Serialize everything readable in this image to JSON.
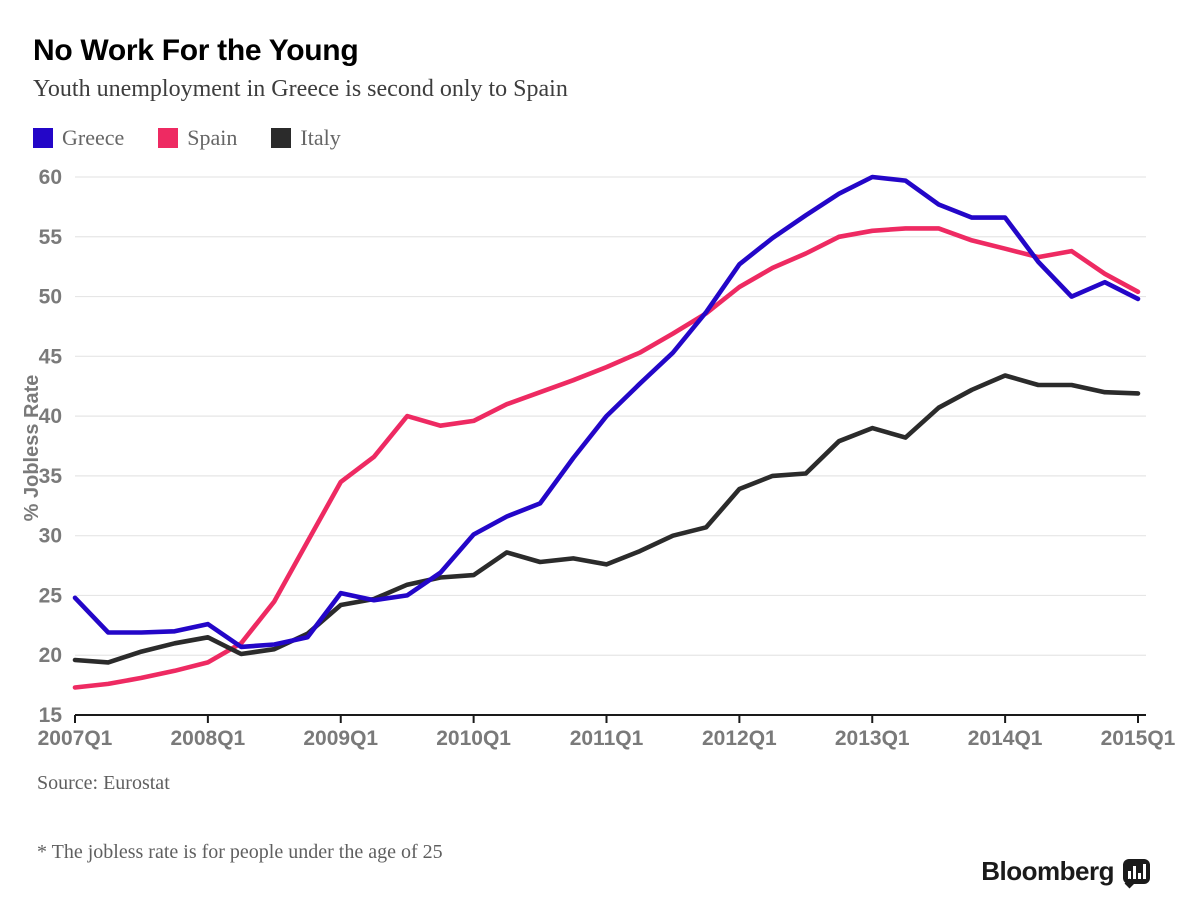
{
  "header": {
    "title": "No Work For the Young",
    "subtitle": "Youth unemployment in Greece is second only to Spain"
  },
  "footer": {
    "source": "Source: Eurostat",
    "footnote": "* The jobless rate is for people under the age of 25",
    "brand": "Bloomberg"
  },
  "colors": {
    "background": "#ffffff",
    "grid": "#e6e6e6",
    "axis": "#1a1a1a",
    "tick_label": "#7a7a7a",
    "axis_title": "#7a7a7a"
  },
  "chart_data": {
    "type": "line",
    "title": "No Work For the Young",
    "subtitle": "Youth unemployment in Greece is second only to Spain",
    "xlabel": "",
    "ylabel": "% Jobless Rate",
    "ylim": [
      15,
      60
    ],
    "y_ticks": [
      15,
      20,
      25,
      30,
      35,
      40,
      45,
      50,
      55,
      60
    ],
    "grid": "horizontal",
    "legend_position": "top-left",
    "x": [
      "2007Q1",
      "2007Q2",
      "2007Q3",
      "2007Q4",
      "2008Q1",
      "2008Q2",
      "2008Q3",
      "2008Q4",
      "2009Q1",
      "2009Q2",
      "2009Q3",
      "2009Q4",
      "2010Q1",
      "2010Q2",
      "2010Q3",
      "2010Q4",
      "2011Q1",
      "2011Q2",
      "2011Q3",
      "2011Q4",
      "2012Q1",
      "2012Q2",
      "2012Q3",
      "2012Q4",
      "2013Q1",
      "2013Q2",
      "2013Q3",
      "2013Q4",
      "2014Q1",
      "2014Q2",
      "2014Q3",
      "2014Q4",
      "2015Q1"
    ],
    "x_tick_labels": [
      "2007Q1",
      "2008Q1",
      "2009Q1",
      "2010Q1",
      "2011Q1",
      "2012Q1",
      "2013Q1",
      "2014Q1",
      "2015Q1"
    ],
    "x_tick_every": 4,
    "series": [
      {
        "name": "Greece",
        "color": "#2306c8",
        "values": [
          24.8,
          21.9,
          21.9,
          22.0,
          22.6,
          20.7,
          20.9,
          21.5,
          25.2,
          24.6,
          25.0,
          26.9,
          30.1,
          31.6,
          32.7,
          36.5,
          40.0,
          42.7,
          45.3,
          48.7,
          52.7,
          54.9,
          56.8,
          58.6,
          60.0,
          59.7,
          57.7,
          56.6,
          56.6,
          52.9,
          50.0,
          51.2,
          49.8
        ]
      },
      {
        "name": "Spain",
        "color": "#ee2a62",
        "values": [
          17.3,
          17.6,
          18.1,
          18.7,
          19.4,
          21.0,
          24.5,
          29.5,
          34.5,
          36.6,
          40.0,
          39.2,
          39.6,
          41.0,
          42.0,
          43.0,
          44.1,
          45.3,
          46.9,
          48.6,
          50.8,
          52.4,
          53.6,
          55.0,
          55.5,
          55.7,
          55.7,
          54.7,
          54.0,
          53.3,
          53.8,
          51.9,
          50.4
        ]
      },
      {
        "name": "Italy",
        "color": "#2b2b2b",
        "values": [
          19.6,
          19.4,
          20.3,
          21.0,
          21.5,
          20.1,
          20.5,
          21.8,
          24.2,
          24.7,
          25.9,
          26.5,
          26.7,
          28.6,
          27.8,
          28.1,
          27.6,
          28.7,
          30.0,
          30.7,
          33.9,
          35.0,
          35.2,
          37.9,
          39.0,
          38.2,
          40.7,
          42.2,
          43.4,
          42.6,
          42.6,
          42.0,
          41.9
        ]
      }
    ]
  },
  "badge_bars": [
    8,
    13,
    6,
    15
  ]
}
